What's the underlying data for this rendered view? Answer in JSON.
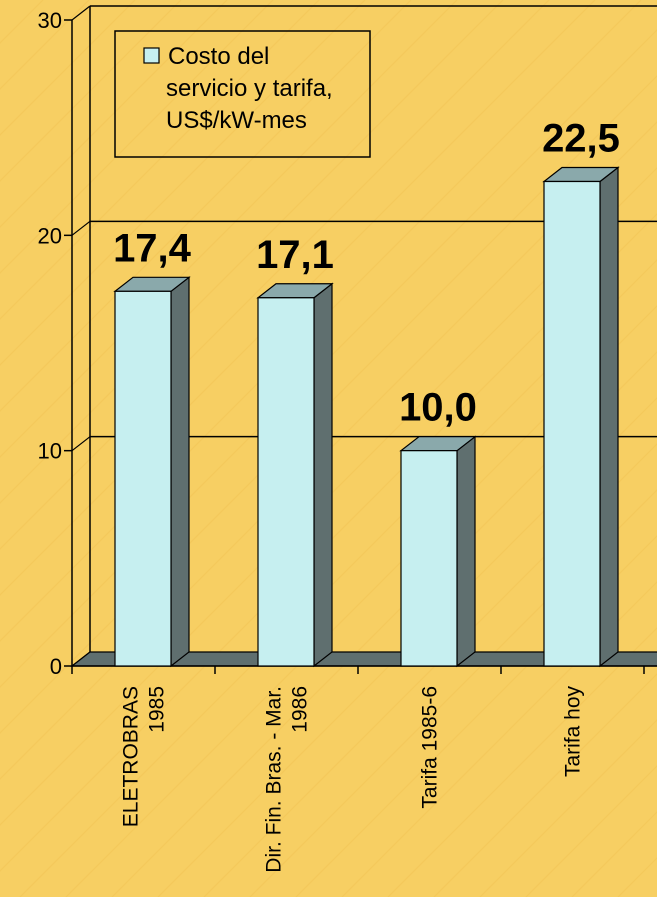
{
  "chart_data": {
    "type": "bar",
    "title": "",
    "xlabel": "",
    "ylabel": "",
    "ylim": [
      0,
      30
    ],
    "yticks": [
      0,
      10,
      20,
      30
    ],
    "grid": true,
    "legend_position": "top-left",
    "categories": [
      [
        "ELETROBRAS",
        "1985"
      ],
      [
        "Dir. Fin. Bras. - Mar.",
        "1986"
      ],
      [
        "Tarifa 1985-6"
      ],
      [
        "Tarifa hoy"
      ]
    ],
    "series": [
      {
        "name": "Costo del servicio y tarifa, US$/kW-mes",
        "legend_lines": [
          "Costo del",
          "servicio y tarifa,",
          "US$/kW-mes"
        ],
        "values": [
          17.4,
          17.1,
          10.0,
          22.5
        ],
        "labels": [
          "17,4",
          "17,1",
          "10,0",
          "22,5"
        ],
        "color": "#c6eff0"
      }
    ],
    "colors": {
      "background": "#f7cf63",
      "bar_front": "#c6eff0",
      "bar_side": "#5f6f6f",
      "bar_top": "#8aa9ab",
      "floor": "#5f6f6f",
      "axis": "#000000"
    }
  }
}
